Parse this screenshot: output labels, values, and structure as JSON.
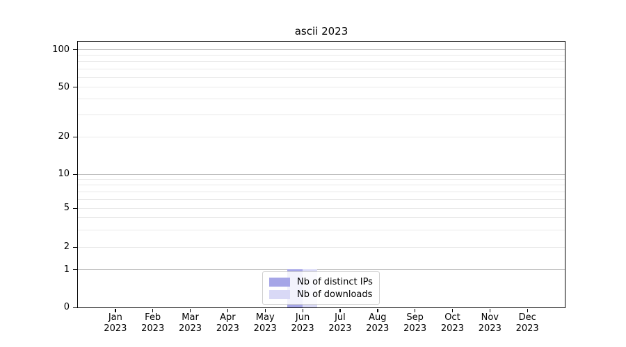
{
  "chart_data": {
    "type": "bar",
    "title": "ascii 2023",
    "categories": [
      "Jan",
      "Feb",
      "Mar",
      "Apr",
      "May",
      "Jun",
      "Jul",
      "Aug",
      "Sep",
      "Oct",
      "Nov",
      "Dec"
    ],
    "category_year": "2023",
    "series": [
      {
        "name": "Nb of distinct IPs",
        "color": "#a6a6e7",
        "values": [
          0,
          0,
          0,
          0,
          0,
          1,
          0,
          0,
          0,
          0,
          0,
          0
        ]
      },
      {
        "name": "Nb of downloads",
        "color": "#d9d9f6",
        "values": [
          0,
          0,
          0,
          0,
          0,
          1,
          0,
          0,
          0,
          0,
          0,
          0
        ]
      }
    ],
    "ylabel": "",
    "xlabel": "",
    "yticks": [
      0,
      1,
      2,
      5,
      10,
      20,
      50,
      100
    ],
    "y_minor_ticks": [
      3,
      4,
      6,
      7,
      8,
      9,
      30,
      40,
      60,
      70,
      80,
      90
    ],
    "ylim": [
      0,
      115
    ],
    "yscale": "linear below 1, logarithmic above 1",
    "grid": "horizontal",
    "legend_position": "lower center",
    "colors": {
      "major_gridline": "#bdbdbd",
      "minor_gridline": "#e9e9e9",
      "axis": "#000000",
      "background": "#ffffff"
    }
  }
}
